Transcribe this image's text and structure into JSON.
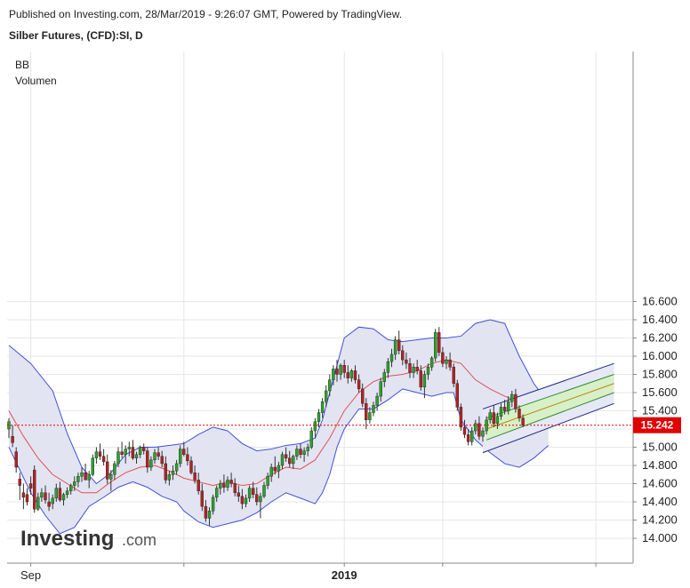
{
  "header": {
    "published": "Published on Investing.com, 28/Mar/2019 - 9:26:07 GMT, Powered by TradingView.",
    "instrument": "Silber Futures, (CFD):SI, D"
  },
  "legend": {
    "indicator1": "BB",
    "indicator2": "Volumen"
  },
  "watermark": {
    "brand": "Investing",
    "suffix": ".com"
  },
  "current_price": {
    "label": "15.242",
    "value": 15.242,
    "color": "#e00000"
  },
  "colors": {
    "up_candle": "#2ca02c",
    "down_candle": "#b22222",
    "wick": "#333333",
    "band_line": "#3f51d8",
    "band_fill": "#e3e4f2",
    "basis_line": "#e05050",
    "channel_line": "#1a237e",
    "channel_fill": "#d7f0c8",
    "channel_mid": "#b8860b",
    "grid": "#e6e6e6"
  },
  "chart_data": {
    "type": "candlestick",
    "title": "Silber Futures, (CFD):SI, D",
    "ylim": [
      13.88,
      16.72
    ],
    "y_ticks": [
      "14.000",
      "14.200",
      "14.400",
      "14.600",
      "14.800",
      "15.000",
      "15.200",
      "15.400",
      "15.600",
      "15.800",
      "16.000",
      "16.200",
      "16.400",
      "16.600"
    ],
    "x_ticks": [
      {
        "index": 6,
        "label": "Sep"
      },
      {
        "index": 48,
        "label": ""
      },
      {
        "index": 92,
        "label": "2019"
      },
      {
        "index": 119,
        "label": ""
      },
      {
        "index": 161,
        "label": ""
      }
    ],
    "candles": [
      [
        15.2,
        15.32,
        15.1,
        15.28
      ],
      [
        15.12,
        15.24,
        15.0,
        15.05
      ],
      [
        14.95,
        15.0,
        14.72,
        14.78
      ],
      [
        14.65,
        14.72,
        14.42,
        14.58
      ],
      [
        14.5,
        14.6,
        14.32,
        14.45
      ],
      [
        14.48,
        14.55,
        14.36,
        14.4
      ],
      [
        14.6,
        14.68,
        14.48,
        14.55
      ],
      [
        14.75,
        14.8,
        14.28,
        14.32
      ],
      [
        14.32,
        14.5,
        14.3,
        14.45
      ],
      [
        14.45,
        14.55,
        14.4,
        14.5
      ],
      [
        14.5,
        14.58,
        14.38,
        14.42
      ],
      [
        14.4,
        14.5,
        14.3,
        14.35
      ],
      [
        14.38,
        14.48,
        14.32,
        14.44
      ],
      [
        14.44,
        14.6,
        14.4,
        14.55
      ],
      [
        14.55,
        14.62,
        14.4,
        14.42
      ],
      [
        14.42,
        14.5,
        14.36,
        14.48
      ],
      [
        14.48,
        14.56,
        14.44,
        14.52
      ],
      [
        14.52,
        14.6,
        14.48,
        14.58
      ],
      [
        14.58,
        14.68,
        14.52,
        14.62
      ],
      [
        14.62,
        14.72,
        14.56,
        14.68
      ],
      [
        14.68,
        14.78,
        14.62,
        14.72
      ],
      [
        14.72,
        14.82,
        14.66,
        14.64
      ],
      [
        14.64,
        14.74,
        14.55,
        14.7
      ],
      [
        14.7,
        14.92,
        14.68,
        14.88
      ],
      [
        14.88,
        15.0,
        14.82,
        14.95
      ],
      [
        14.95,
        15.04,
        14.86,
        14.9
      ],
      [
        14.9,
        14.98,
        14.8,
        14.84
      ],
      [
        14.84,
        14.92,
        14.6,
        14.65
      ],
      [
        14.65,
        14.75,
        14.52,
        14.7
      ],
      [
        14.7,
        14.85,
        14.64,
        14.82
      ],
      [
        14.82,
        15.0,
        14.78,
        14.95
      ],
      [
        14.95,
        15.06,
        14.88,
        14.92
      ],
      [
        14.92,
        15.02,
        14.82,
        14.98
      ],
      [
        14.98,
        15.06,
        14.9,
        15.0
      ],
      [
        15.0,
        15.08,
        14.86,
        14.88
      ],
      [
        14.88,
        14.95,
        14.82,
        14.92
      ],
      [
        14.92,
        15.02,
        14.88,
        15.0
      ],
      [
        15.0,
        15.04,
        14.92,
        14.96
      ],
      [
        14.96,
        15.0,
        14.72,
        14.78
      ],
      [
        14.78,
        14.9,
        14.74,
        14.86
      ],
      [
        14.86,
        14.98,
        14.82,
        14.94
      ],
      [
        14.94,
        15.0,
        14.86,
        14.9
      ],
      [
        14.9,
        14.96,
        14.78,
        14.82
      ],
      [
        14.82,
        14.9,
        14.6,
        14.64
      ],
      [
        14.64,
        14.74,
        14.58,
        14.7
      ],
      [
        14.7,
        14.8,
        14.64,
        14.74
      ],
      [
        14.74,
        14.86,
        14.7,
        14.82
      ],
      [
        14.82,
        15.02,
        14.78,
        14.98
      ],
      [
        14.98,
        15.06,
        14.9,
        14.92
      ],
      [
        14.92,
        15.0,
        14.8,
        14.85
      ],
      [
        14.85,
        14.9,
        14.7,
        14.72
      ],
      [
        14.72,
        14.8,
        14.6,
        14.64
      ],
      [
        14.64,
        14.72,
        14.48,
        14.52
      ],
      [
        14.52,
        14.6,
        14.3,
        14.35
      ],
      [
        14.35,
        14.42,
        14.18,
        14.22
      ],
      [
        14.22,
        14.34,
        14.14,
        14.3
      ],
      [
        14.3,
        14.48,
        14.26,
        14.45
      ],
      [
        14.45,
        14.58,
        14.4,
        14.55
      ],
      [
        14.55,
        14.64,
        14.48,
        14.6
      ],
      [
        14.6,
        14.7,
        14.5,
        14.56
      ],
      [
        14.56,
        14.68,
        14.52,
        14.64
      ],
      [
        14.64,
        14.72,
        14.56,
        14.6
      ],
      [
        14.6,
        14.66,
        14.46,
        14.5
      ],
      [
        14.5,
        14.58,
        14.4,
        14.46
      ],
      [
        14.46,
        14.54,
        14.32,
        14.38
      ],
      [
        14.38,
        14.48,
        14.34,
        14.44
      ],
      [
        14.44,
        14.58,
        14.4,
        14.55
      ],
      [
        14.55,
        14.62,
        14.44,
        14.48
      ],
      [
        14.48,
        14.56,
        14.36,
        14.4
      ],
      [
        14.4,
        14.5,
        14.22,
        14.46
      ],
      [
        14.46,
        14.62,
        14.44,
        14.58
      ],
      [
        14.58,
        14.72,
        14.54,
        14.68
      ],
      [
        14.68,
        14.82,
        14.62,
        14.78
      ],
      [
        14.78,
        14.9,
        14.7,
        14.74
      ],
      [
        14.74,
        14.84,
        14.66,
        14.8
      ],
      [
        14.8,
        14.95,
        14.76,
        14.92
      ],
      [
        14.92,
        15.0,
        14.84,
        14.88
      ],
      [
        14.88,
        14.96,
        14.78,
        14.82
      ],
      [
        14.82,
        14.92,
        14.76,
        14.9
      ],
      [
        14.9,
        15.02,
        14.86,
        14.98
      ],
      [
        14.98,
        15.04,
        14.88,
        14.92
      ],
      [
        14.92,
        15.0,
        14.84,
        14.96
      ],
      [
        14.96,
        15.04,
        14.9,
        15.0
      ],
      [
        15.0,
        15.22,
        14.98,
        15.18
      ],
      [
        15.18,
        15.32,
        15.1,
        15.28
      ],
      [
        15.28,
        15.42,
        15.22,
        15.38
      ],
      [
        15.38,
        15.54,
        15.32,
        15.5
      ],
      [
        15.5,
        15.68,
        15.44,
        15.62
      ],
      [
        15.62,
        15.8,
        15.56,
        15.74
      ],
      [
        15.74,
        15.9,
        15.68,
        15.86
      ],
      [
        15.86,
        15.96,
        15.72,
        15.8
      ],
      [
        15.8,
        15.92,
        15.74,
        15.9
      ],
      [
        15.9,
        15.96,
        15.76,
        15.82
      ],
      [
        15.82,
        15.9,
        15.7,
        15.76
      ],
      [
        15.76,
        15.86,
        15.72,
        15.84
      ],
      [
        15.84,
        15.9,
        15.7,
        15.74
      ],
      [
        15.74,
        15.8,
        15.6,
        15.64
      ],
      [
        15.64,
        15.7,
        15.44,
        15.48
      ],
      [
        15.48,
        15.54,
        15.2,
        15.3
      ],
      [
        15.3,
        15.44,
        15.26,
        15.38
      ],
      [
        15.38,
        15.5,
        15.34,
        15.46
      ],
      [
        15.46,
        15.6,
        15.4,
        15.56
      ],
      [
        15.56,
        15.76,
        15.5,
        15.72
      ],
      [
        15.72,
        15.86,
        15.66,
        15.82
      ],
      [
        15.82,
        15.98,
        15.76,
        15.94
      ],
      [
        15.94,
        16.08,
        15.88,
        16.02
      ],
      [
        16.02,
        16.22,
        15.96,
        16.18
      ],
      [
        16.18,
        16.28,
        16.02,
        16.06
      ],
      [
        16.06,
        16.12,
        15.9,
        15.96
      ],
      [
        15.96,
        16.04,
        15.86,
        15.92
      ],
      [
        15.92,
        15.98,
        15.76,
        15.82
      ],
      [
        15.82,
        15.92,
        15.76,
        15.88
      ],
      [
        15.88,
        15.96,
        15.8,
        15.84
      ],
      [
        15.84,
        15.9,
        15.62,
        15.66
      ],
      [
        15.66,
        15.84,
        15.54,
        15.8
      ],
      [
        15.8,
        15.92,
        15.74,
        15.88
      ],
      [
        15.88,
        16.0,
        15.84,
        15.98
      ],
      [
        15.98,
        16.3,
        15.94,
        16.26
      ],
      [
        16.26,
        16.32,
        16.0,
        16.04
      ],
      [
        16.04,
        16.1,
        15.88,
        15.92
      ],
      [
        15.92,
        16.0,
        15.86,
        15.96
      ],
      [
        15.96,
        16.04,
        15.84,
        15.88
      ],
      [
        15.88,
        15.92,
        15.66,
        15.7
      ],
      [
        15.7,
        15.74,
        15.4,
        15.44
      ],
      [
        15.44,
        15.48,
        15.18,
        15.22
      ],
      [
        15.22,
        15.3,
        15.1,
        15.14
      ],
      [
        15.14,
        15.2,
        15.02,
        15.06
      ],
      [
        15.06,
        15.22,
        15.02,
        15.18
      ],
      [
        15.18,
        15.3,
        15.14,
        15.26
      ],
      [
        15.26,
        15.34,
        15.08,
        15.12
      ],
      [
        15.12,
        15.22,
        15.06,
        15.18
      ],
      [
        15.18,
        15.34,
        15.14,
        15.3
      ],
      [
        15.3,
        15.42,
        15.26,
        15.38
      ],
      [
        15.38,
        15.46,
        15.22,
        15.26
      ],
      [
        15.26,
        15.38,
        15.2,
        15.34
      ],
      [
        15.34,
        15.48,
        15.3,
        15.44
      ],
      [
        15.44,
        15.52,
        15.36,
        15.4
      ],
      [
        15.4,
        15.56,
        15.36,
        15.5
      ],
      [
        15.5,
        15.62,
        15.44,
        15.58
      ],
      [
        15.58,
        15.64,
        15.38,
        15.42
      ],
      [
        15.42,
        15.46,
        15.28,
        15.32
      ],
      [
        15.32,
        15.36,
        15.22,
        15.24
      ]
    ],
    "bb_upper": [
      [
        0,
        16.12
      ],
      [
        6,
        15.92
      ],
      [
        12,
        15.62
      ],
      [
        16,
        15.15
      ],
      [
        20,
        14.78
      ],
      [
        24,
        14.6
      ],
      [
        28,
        14.72
      ],
      [
        32,
        14.92
      ],
      [
        36,
        15.0
      ],
      [
        40,
        15.0
      ],
      [
        44,
        15.02
      ],
      [
        48,
        15.04
      ],
      [
        52,
        15.14
      ],
      [
        56,
        15.22
      ],
      [
        60,
        15.18
      ],
      [
        64,
        15.04
      ],
      [
        68,
        14.96
      ],
      [
        72,
        14.98
      ],
      [
        76,
        15.02
      ],
      [
        80,
        15.04
      ],
      [
        84,
        15.1
      ],
      [
        86,
        15.3
      ],
      [
        88,
        15.6
      ],
      [
        90,
        15.9
      ],
      [
        92,
        16.2
      ],
      [
        96,
        16.32
      ],
      [
        100,
        16.3
      ],
      [
        104,
        16.18
      ],
      [
        108,
        16.16
      ],
      [
        112,
        16.18
      ],
      [
        116,
        16.2
      ],
      [
        120,
        16.2
      ],
      [
        124,
        16.22
      ],
      [
        128,
        16.36
      ],
      [
        132,
        16.4
      ],
      [
        136,
        16.36
      ],
      [
        140,
        16.0
      ],
      [
        144,
        15.7
      ],
      [
        148,
        15.48
      ]
    ],
    "bb_lower": [
      [
        0,
        15.0
      ],
      [
        6,
        14.5
      ],
      [
        10,
        14.25
      ],
      [
        14,
        14.05
      ],
      [
        18,
        14.12
      ],
      [
        22,
        14.35
      ],
      [
        26,
        14.45
      ],
      [
        30,
        14.56
      ],
      [
        34,
        14.62
      ],
      [
        38,
        14.56
      ],
      [
        42,
        14.46
      ],
      [
        46,
        14.4
      ],
      [
        48,
        14.3
      ],
      [
        52,
        14.18
      ],
      [
        56,
        14.12
      ],
      [
        60,
        14.16
      ],
      [
        64,
        14.2
      ],
      [
        68,
        14.28
      ],
      [
        72,
        14.4
      ],
      [
        76,
        14.5
      ],
      [
        80,
        14.44
      ],
      [
        84,
        14.38
      ],
      [
        86,
        14.5
      ],
      [
        88,
        14.7
      ],
      [
        90,
        15.0
      ],
      [
        92,
        15.2
      ],
      [
        96,
        15.42
      ],
      [
        100,
        15.42
      ],
      [
        104,
        15.52
      ],
      [
        108,
        15.64
      ],
      [
        112,
        15.6
      ],
      [
        116,
        15.56
      ],
      [
        120,
        15.6
      ],
      [
        122,
        15.6
      ],
      [
        124,
        15.3
      ],
      [
        128,
        15.08
      ],
      [
        132,
        14.94
      ],
      [
        136,
        14.82
      ],
      [
        140,
        14.78
      ],
      [
        144,
        14.88
      ],
      [
        148,
        15.02
      ]
    ],
    "bb_basis": [
      [
        0,
        15.4
      ],
      [
        4,
        15.12
      ],
      [
        8,
        14.88
      ],
      [
        12,
        14.7
      ],
      [
        16,
        14.6
      ],
      [
        20,
        14.5
      ],
      [
        24,
        14.5
      ],
      [
        28,
        14.62
      ],
      [
        32,
        14.72
      ],
      [
        36,
        14.78
      ],
      [
        40,
        14.8
      ],
      [
        44,
        14.74
      ],
      [
        48,
        14.66
      ],
      [
        52,
        14.62
      ],
      [
        56,
        14.58
      ],
      [
        60,
        14.62
      ],
      [
        64,
        14.58
      ],
      [
        68,
        14.6
      ],
      [
        72,
        14.7
      ],
      [
        76,
        14.78
      ],
      [
        80,
        14.76
      ],
      [
        84,
        14.86
      ],
      [
        88,
        15.1
      ],
      [
        92,
        15.4
      ],
      [
        96,
        15.6
      ],
      [
        100,
        15.72
      ],
      [
        104,
        15.78
      ],
      [
        108,
        15.8
      ],
      [
        112,
        15.84
      ],
      [
        116,
        15.92
      ],
      [
        120,
        15.96
      ],
      [
        124,
        15.92
      ],
      [
        128,
        15.74
      ],
      [
        132,
        15.64
      ],
      [
        136,
        15.56
      ],
      [
        140,
        15.5
      ],
      [
        144,
        15.42
      ]
    ],
    "channel": {
      "lower": [
        [
          130,
          14.94
        ],
        [
          166,
          15.48
        ]
      ],
      "inner_lower": [
        [
          131,
          15.08
        ],
        [
          166,
          15.6
        ]
      ],
      "mid": [
        [
          131,
          15.2
        ],
        [
          166,
          15.7
        ]
      ],
      "inner_upper": [
        [
          131,
          15.32
        ],
        [
          166,
          15.8
        ]
      ],
      "upper": [
        [
          130,
          15.42
        ],
        [
          166,
          15.92
        ]
      ]
    }
  }
}
